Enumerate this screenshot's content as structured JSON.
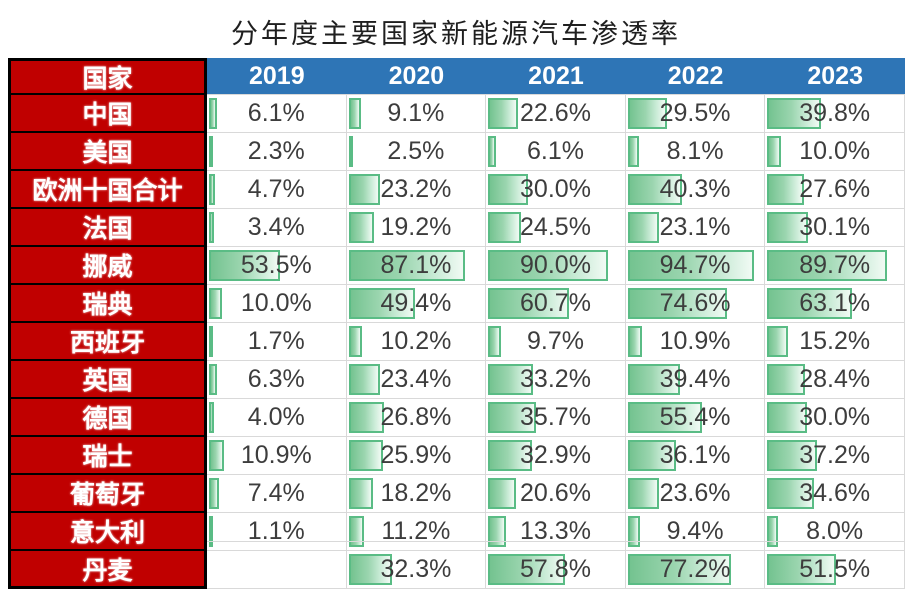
{
  "title": "分年度主要国家新能源汽车渗透率",
  "header": {
    "corner": "国家",
    "years": [
      "2019",
      "2020",
      "2021",
      "2022",
      "2023"
    ]
  },
  "chart_data": {
    "type": "table",
    "title": "分年度主要国家新能源汽车渗透率",
    "row_header": "国家",
    "categories": [
      "2019",
      "2020",
      "2021",
      "2022",
      "2023"
    ],
    "unit": "%",
    "bar_scale_max": 100,
    "series": [
      {
        "name": "中国",
        "values": [
          6.1,
          9.1,
          22.6,
          29.5,
          39.8
        ],
        "labels": [
          "6.1%",
          "9.1%",
          "22.6%",
          "29.5%",
          "39.8%"
        ]
      },
      {
        "name": "美国",
        "values": [
          2.3,
          2.5,
          6.1,
          8.1,
          10.0
        ],
        "labels": [
          "2.3%",
          "2.5%",
          "6.1%",
          "8.1%",
          "10.0%"
        ]
      },
      {
        "name": "欧洲十国合计",
        "values": [
          4.7,
          23.2,
          30.0,
          40.3,
          27.6
        ],
        "labels": [
          "4.7%",
          "23.2%",
          "30.0%",
          "40.3%",
          "27.6%"
        ]
      },
      {
        "name": "法国",
        "values": [
          3.4,
          19.2,
          24.5,
          23.1,
          30.1
        ],
        "labels": [
          "3.4%",
          "19.2%",
          "24.5%",
          "23.1%",
          "30.1%"
        ]
      },
      {
        "name": "挪威",
        "values": [
          53.5,
          87.1,
          90.0,
          94.7,
          89.7
        ],
        "labels": [
          "53.5%",
          "87.1%",
          "90.0%",
          "94.7%",
          "89.7%"
        ]
      },
      {
        "name": "瑞典",
        "values": [
          10.0,
          49.4,
          60.7,
          74.6,
          63.1
        ],
        "labels": [
          "10.0%",
          "49.4%",
          "60.7%",
          "74.6%",
          "63.1%"
        ]
      },
      {
        "name": "西班牙",
        "values": [
          1.7,
          10.2,
          9.7,
          10.9,
          15.2
        ],
        "labels": [
          "1.7%",
          "10.2%",
          "9.7%",
          "10.9%",
          "15.2%"
        ]
      },
      {
        "name": "英国",
        "values": [
          6.3,
          23.4,
          33.2,
          39.4,
          28.4
        ],
        "labels": [
          "6.3%",
          "23.4%",
          "33.2%",
          "39.4%",
          "28.4%"
        ]
      },
      {
        "name": "德国",
        "values": [
          4.0,
          26.8,
          35.7,
          55.4,
          30.0
        ],
        "labels": [
          "4.0%",
          "26.8%",
          "35.7%",
          "55.4%",
          "30.0%"
        ]
      },
      {
        "name": "瑞士",
        "values": [
          10.9,
          25.9,
          32.9,
          36.1,
          37.2
        ],
        "labels": [
          "10.9%",
          "25.9%",
          "32.9%",
          "36.1%",
          "37.2%"
        ]
      },
      {
        "name": "葡萄牙",
        "values": [
          7.4,
          18.2,
          20.6,
          23.6,
          34.6
        ],
        "labels": [
          "7.4%",
          "18.2%",
          "20.6%",
          "23.6%",
          "34.6%"
        ]
      },
      {
        "name": "意大利",
        "values": [
          1.1,
          11.2,
          13.3,
          9.4,
          8.0
        ],
        "labels": [
          "1.1%",
          "11.2%",
          "13.3%",
          "9.4%",
          "8.0%"
        ]
      },
      {
        "name": "丹麦",
        "values": [
          null,
          32.3,
          57.8,
          77.2,
          51.5
        ],
        "labels": [
          "",
          "32.3%",
          "57.8%",
          "77.2%",
          "51.5%"
        ]
      }
    ]
  },
  "colors": {
    "country_column_bg": "#C00000",
    "country_column_border": "#000000",
    "year_header_bg": "#2E75B6",
    "header_text": "#FFFFFF",
    "grid_line": "#D9D9D9",
    "value_text": "#3D3D3D",
    "bar_border": "#5ABC85",
    "bar_fill_start": "#74C390",
    "bar_fill_end": "#F1FAF4"
  }
}
